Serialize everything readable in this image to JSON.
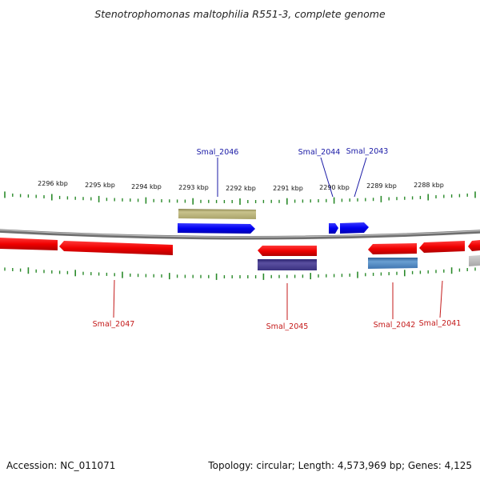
{
  "title": "Stenotrophomonas maltophilia R551-3, complete genome",
  "footer": {
    "accession": "Accession: NC_011071",
    "summary": "Topology: circular; Length: 4,573,969 bp; Genes: 4,125"
  },
  "scale": {
    "ticks": [
      "2296 kbp",
      "2295 kbp",
      "2294 kbp",
      "2293 kbp",
      "2292 kbp",
      "2291 kbp",
      "2290 kbp",
      "2289 kbp",
      "2288 kbp"
    ]
  },
  "genes": {
    "forward": [
      "Smal_2046",
      "Smal_2044",
      "Smal_2043"
    ],
    "reverse": [
      "Smal_2047",
      "Smal_2045",
      "Smal_2042",
      "Smal_2041"
    ]
  },
  "colors": {
    "forward_gene": "#0000ee",
    "reverse_gene": "#ee0000",
    "forward_label": "#1a1aa6",
    "reverse_label": "#c41a1a",
    "tick": "#2a8a2a",
    "backbone": "#8a8a8a",
    "feature_olive": "#b8b27a",
    "feature_purple": "#4a3f8c",
    "feature_steel": "#4f86c0"
  }
}
